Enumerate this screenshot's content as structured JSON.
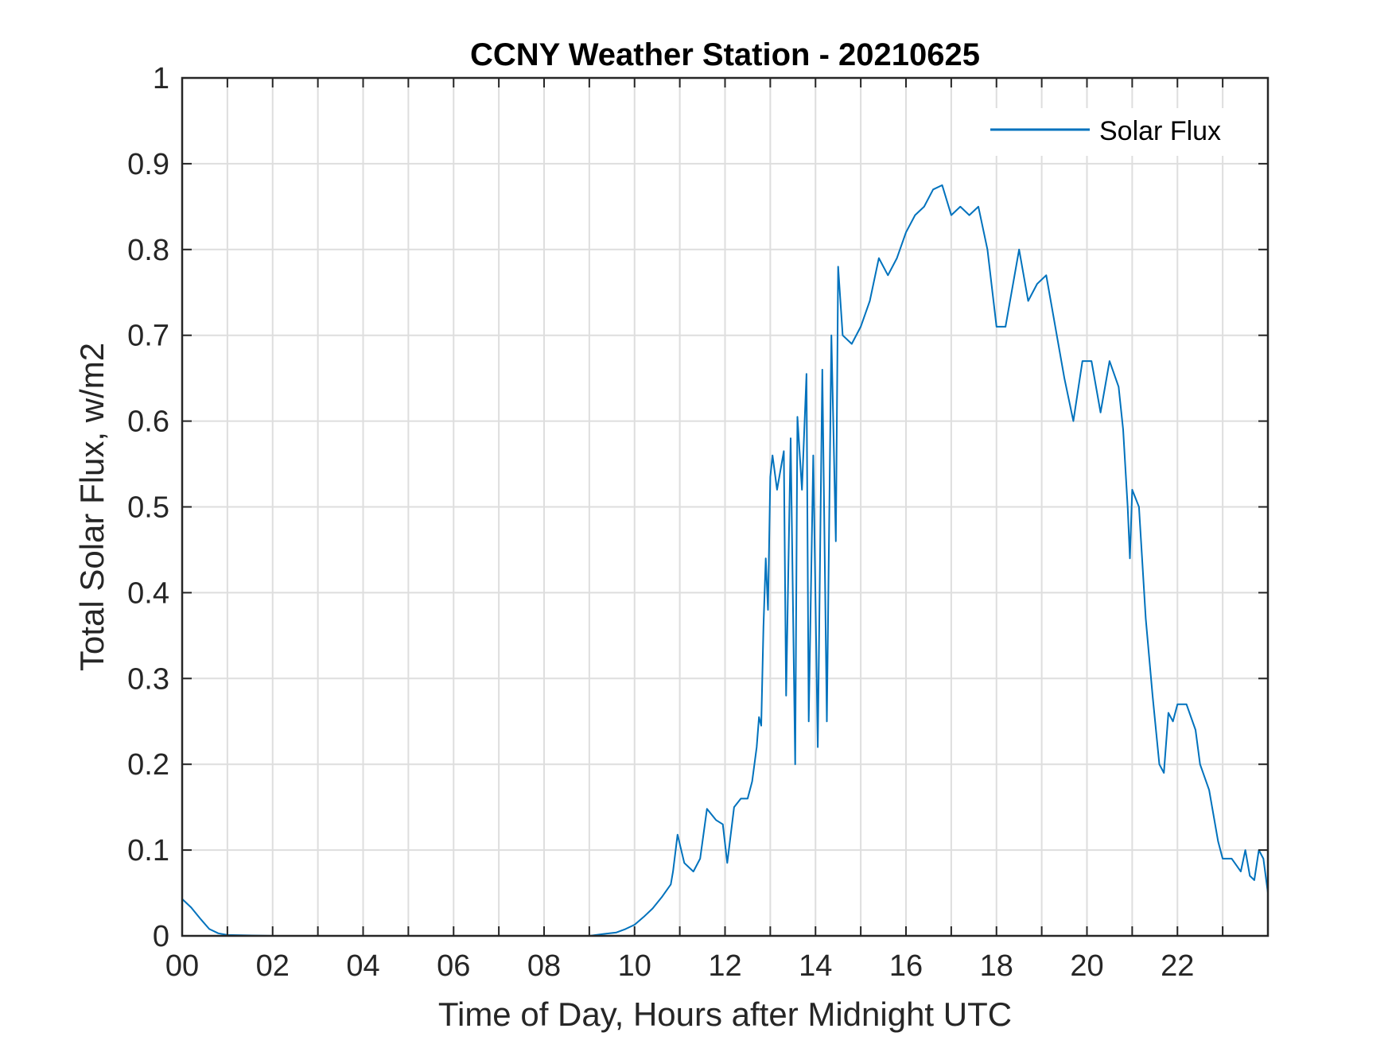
{
  "chart_data": {
    "type": "line",
    "title": "CCNY Weather Station - 20210625",
    "xlabel": "Time of Day, Hours after Midnight UTC",
    "ylabel": "Total Solar Flux, w/m2",
    "xlim": [
      0,
      24
    ],
    "ylim": [
      0,
      1
    ],
    "xticks": [
      0,
      2,
      4,
      6,
      8,
      10,
      12,
      14,
      16,
      18,
      20,
      22
    ],
    "xtick_labels": [
      "00",
      "02",
      "04",
      "06",
      "08",
      "10",
      "12",
      "14",
      "16",
      "18",
      "20",
      "22"
    ],
    "yticks": [
      0,
      0.1,
      0.2,
      0.3,
      0.4,
      0.5,
      0.6,
      0.7,
      0.8,
      0.9,
      1
    ],
    "ytick_labels": [
      "0",
      "0.1",
      "0.2",
      "0.3",
      "0.4",
      "0.5",
      "0.6",
      "0.7",
      "0.8",
      "0.9",
      "1"
    ],
    "grid": true,
    "legend_position": "top-right",
    "series": [
      {
        "name": "Solar Flux",
        "color": "#0072BD",
        "x": [
          0,
          0.2,
          0.4,
          0.6,
          0.8,
          1.0,
          2.0,
          4.0,
          6.0,
          8.0,
          9.0,
          9.3,
          9.6,
          9.8,
          10.0,
          10.2,
          10.4,
          10.6,
          10.8,
          10.85,
          10.95,
          11.1,
          11.3,
          11.45,
          11.6,
          11.8,
          11.95,
          12.05,
          12.2,
          12.35,
          12.5,
          12.6,
          12.7,
          12.75,
          12.8,
          12.85,
          12.9,
          12.95,
          13.0,
          13.05,
          13.15,
          13.3,
          13.35,
          13.45,
          13.55,
          13.6,
          13.7,
          13.8,
          13.85,
          13.95,
          14.05,
          14.15,
          14.25,
          14.35,
          14.45,
          14.5,
          14.6,
          14.8,
          15.0,
          15.2,
          15.4,
          15.6,
          15.8,
          16.0,
          16.2,
          16.4,
          16.6,
          16.8,
          17.0,
          17.2,
          17.4,
          17.6,
          17.8,
          18.0,
          18.2,
          18.4,
          18.5,
          18.7,
          18.9,
          19.1,
          19.3,
          19.5,
          19.7,
          19.9,
          20.1,
          20.3,
          20.5,
          20.7,
          20.8,
          20.9,
          20.95,
          21.0,
          21.15,
          21.3,
          21.45,
          21.6,
          21.7,
          21.8,
          21.9,
          22.0,
          22.2,
          22.4,
          22.5,
          22.7,
          22.9,
          23.0,
          23.2,
          23.4,
          23.5,
          23.6,
          23.7,
          23.8,
          23.9,
          24.0
        ],
        "y": [
          0.043,
          0.033,
          0.02,
          0.008,
          0.003,
          0.001,
          0.0,
          0.0,
          0.0,
          0.0,
          0.0,
          0.002,
          0.004,
          0.008,
          0.013,
          0.022,
          0.032,
          0.045,
          0.06,
          0.075,
          0.118,
          0.085,
          0.075,
          0.09,
          0.148,
          0.135,
          0.13,
          0.085,
          0.15,
          0.16,
          0.16,
          0.18,
          0.22,
          0.255,
          0.245,
          0.36,
          0.44,
          0.38,
          0.535,
          0.56,
          0.52,
          0.565,
          0.28,
          0.58,
          0.2,
          0.605,
          0.52,
          0.655,
          0.25,
          0.56,
          0.22,
          0.66,
          0.25,
          0.7,
          0.46,
          0.78,
          0.7,
          0.69,
          0.71,
          0.74,
          0.79,
          0.77,
          0.79,
          0.82,
          0.84,
          0.85,
          0.87,
          0.875,
          0.84,
          0.85,
          0.84,
          0.85,
          0.8,
          0.71,
          0.71,
          0.77,
          0.8,
          0.74,
          0.76,
          0.77,
          0.71,
          0.65,
          0.6,
          0.67,
          0.67,
          0.61,
          0.67,
          0.64,
          0.59,
          0.5,
          0.44,
          0.52,
          0.5,
          0.37,
          0.28,
          0.2,
          0.19,
          0.26,
          0.25,
          0.27,
          0.27,
          0.24,
          0.2,
          0.17,
          0.11,
          0.09,
          0.09,
          0.075,
          0.1,
          0.07,
          0.065,
          0.1,
          0.09,
          0.05
        ]
      }
    ]
  }
}
